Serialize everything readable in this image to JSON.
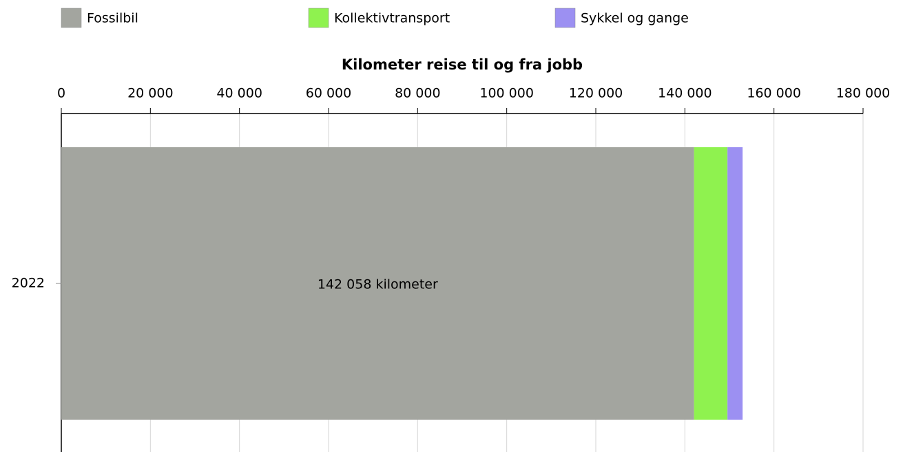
{
  "chart_data": {
    "type": "bar",
    "orientation": "horizontal",
    "stacked": true,
    "title": "Kilometer reise til og fra jobb",
    "categories": [
      "2022"
    ],
    "series": [
      {
        "name": "Fossilbil",
        "color": "#a3a59f",
        "values": [
          142058
        ],
        "value_labels": [
          "142 058 kilometer"
        ]
      },
      {
        "name": "Kollektivtransport",
        "color": "#8ff24f",
        "values": [
          7500
        ]
      },
      {
        "name": "Sykkel og gange",
        "color": "#9c90f2",
        "values": [
          3400
        ]
      }
    ],
    "xlim": [
      0,
      180000
    ],
    "xticks": [
      0,
      {
        "value": 20000,
        "label": "20 000"
      },
      {
        "value": 40000,
        "label": "40 000"
      },
      {
        "value": 60000,
        "label": "60 000"
      },
      {
        "value": 80000,
        "label": "80 000"
      },
      {
        "value": 100000,
        "label": "100 000"
      },
      {
        "value": 120000,
        "label": "120 000"
      },
      {
        "value": 140000,
        "label": "140 000"
      },
      {
        "value": 160000,
        "label": "160 000"
      },
      {
        "value": 180000,
        "label": "180 000"
      }
    ],
    "grid": true,
    "legend": "top"
  }
}
